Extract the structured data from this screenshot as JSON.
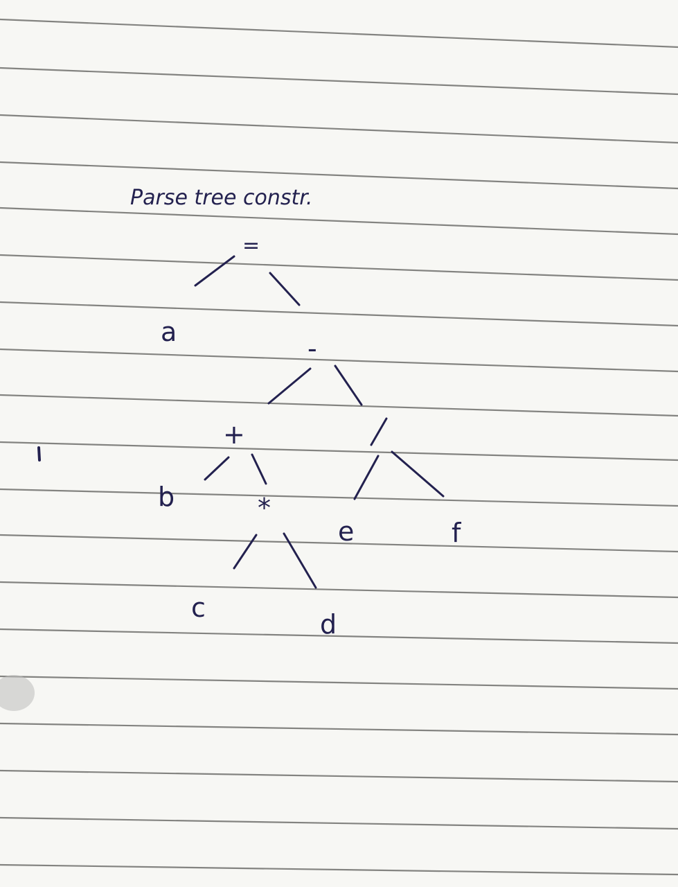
{
  "title": "Parse tree constr.",
  "tree": {
    "root": "=",
    "left_leaf": "a",
    "op_minus": "-",
    "op_plus": "+",
    "op_div": "/",
    "op_star": "*",
    "leaf_b": "b",
    "leaf_c": "c",
    "leaf_d": "d",
    "leaf_e": "e",
    "leaf_f": "f"
  },
  "colors": {
    "ink": "#23214f",
    "paper": "#f7f7f4",
    "rule": "#6f6f6c"
  }
}
